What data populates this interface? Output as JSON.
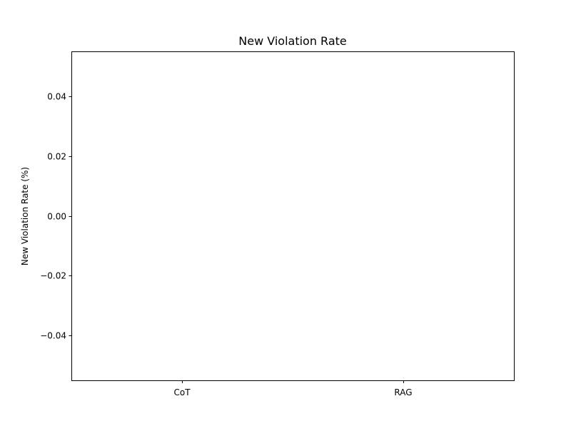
{
  "chart_data": {
    "type": "bar",
    "title": "New Violation Rate",
    "xlabel": "",
    "ylabel": "New Violation Rate (%)",
    "categories": [
      "CoT",
      "RAG"
    ],
    "values": [
      0,
      0
    ],
    "ylim": [
      -0.055,
      0.055
    ],
    "yticks": [
      0.04,
      0.02,
      0.0,
      -0.02,
      -0.04
    ],
    "ytick_labels": [
      "0.04",
      "0.02",
      "0.00",
      "−0.02",
      "−0.04"
    ],
    "grid": false,
    "colors": {
      "bar": "#1f77b4",
      "axis": "#000000",
      "background": "#ffffff"
    }
  }
}
